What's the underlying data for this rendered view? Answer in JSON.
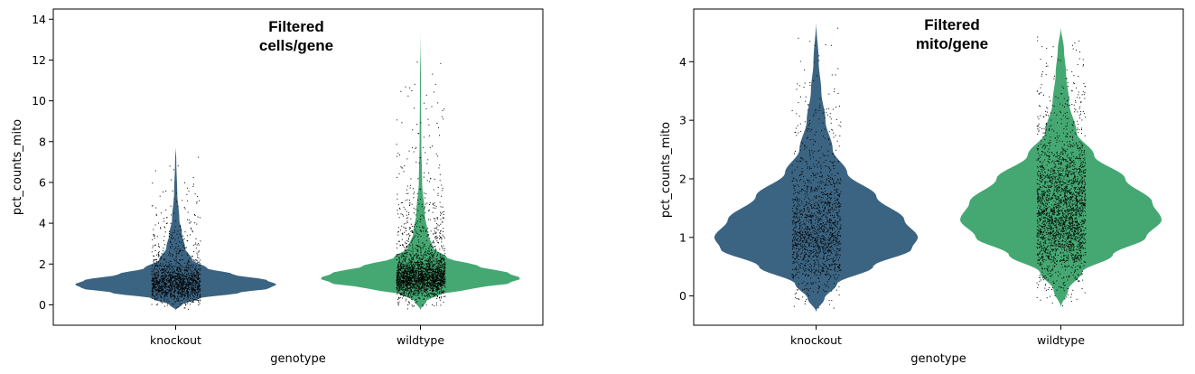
{
  "chart_data": [
    {
      "type": "violin",
      "title_lines": [
        "Filtered",
        "cells/gene"
      ],
      "xlabel": "genotype",
      "ylabel": "pct_counts_mito",
      "categories": [
        "knockout",
        "wildtype"
      ],
      "ylim": [
        -1,
        14.5
      ],
      "yticks": [
        0,
        2,
        4,
        6,
        8,
        10,
        12,
        14
      ],
      "grid": false,
      "colors": [
        "#3b6482",
        "#45a872"
      ],
      "series": [
        {
          "category": "knockout",
          "min": -0.25,
          "max": 7.8,
          "median": 1.0,
          "points": 1500,
          "profile": [
            [
              -0.25,
              0.0
            ],
            [
              0.0,
              0.06
            ],
            [
              0.3,
              0.22
            ],
            [
              0.6,
              0.62
            ],
            [
              0.8,
              0.9
            ],
            [
              1.0,
              0.97
            ],
            [
              1.2,
              0.88
            ],
            [
              1.5,
              0.55
            ],
            [
              1.8,
              0.3
            ],
            [
              2.2,
              0.16
            ],
            [
              2.8,
              0.09
            ],
            [
              3.5,
              0.06
            ],
            [
              4.2,
              0.035
            ],
            [
              5.5,
              0.015
            ],
            [
              7.0,
              0.006
            ],
            [
              7.8,
              0.0
            ]
          ]
        },
        {
          "category": "wildtype",
          "min": -0.25,
          "max": 13.6,
          "median": 1.3,
          "points": 2500,
          "profile": [
            [
              -0.25,
              0.0
            ],
            [
              0.2,
              0.06
            ],
            [
              0.5,
              0.18
            ],
            [
              0.8,
              0.5
            ],
            [
              1.05,
              0.85
            ],
            [
              1.3,
              0.97
            ],
            [
              1.55,
              0.85
            ],
            [
              1.9,
              0.55
            ],
            [
              2.3,
              0.26
            ],
            [
              2.8,
              0.12
            ],
            [
              3.5,
              0.07
            ],
            [
              4.5,
              0.04
            ],
            [
              6.0,
              0.016
            ],
            [
              8.0,
              0.008
            ],
            [
              10.5,
              0.005
            ],
            [
              13.6,
              0.0
            ]
          ]
        }
      ]
    },
    {
      "type": "violin",
      "title_lines": [
        "Filtered",
        "mito/gene"
      ],
      "xlabel": "genotype",
      "ylabel": "pct_counts_mito",
      "categories": [
        "knockout",
        "wildtype"
      ],
      "ylim": [
        -0.5,
        4.9
      ],
      "yticks": [
        0,
        1,
        2,
        3,
        4
      ],
      "grid": false,
      "colors": [
        "#3b6482",
        "#45a872"
      ],
      "series": [
        {
          "category": "knockout",
          "min": -0.27,
          "max": 4.7,
          "median": 1.0,
          "points": 1500,
          "profile": [
            [
              -0.27,
              0.0
            ],
            [
              -0.05,
              0.08
            ],
            [
              0.2,
              0.2
            ],
            [
              0.5,
              0.55
            ],
            [
              0.8,
              0.92
            ],
            [
              1.0,
              0.98
            ],
            [
              1.3,
              0.85
            ],
            [
              1.7,
              0.58
            ],
            [
              2.1,
              0.3
            ],
            [
              2.5,
              0.16
            ],
            [
              3.0,
              0.09
            ],
            [
              3.5,
              0.05
            ],
            [
              4.0,
              0.025
            ],
            [
              4.7,
              0.0
            ]
          ]
        },
        {
          "category": "wildtype",
          "min": -0.2,
          "max": 4.6,
          "median": 1.3,
          "points": 2500,
          "profile": [
            [
              -0.2,
              0.0
            ],
            [
              0.1,
              0.07
            ],
            [
              0.4,
              0.2
            ],
            [
              0.7,
              0.5
            ],
            [
              1.0,
              0.82
            ],
            [
              1.3,
              0.97
            ],
            [
              1.6,
              0.88
            ],
            [
              2.0,
              0.62
            ],
            [
              2.4,
              0.32
            ],
            [
              2.8,
              0.15
            ],
            [
              3.3,
              0.08
            ],
            [
              3.8,
              0.05
            ],
            [
              4.2,
              0.03
            ],
            [
              4.6,
              0.0
            ]
          ]
        }
      ]
    }
  ]
}
